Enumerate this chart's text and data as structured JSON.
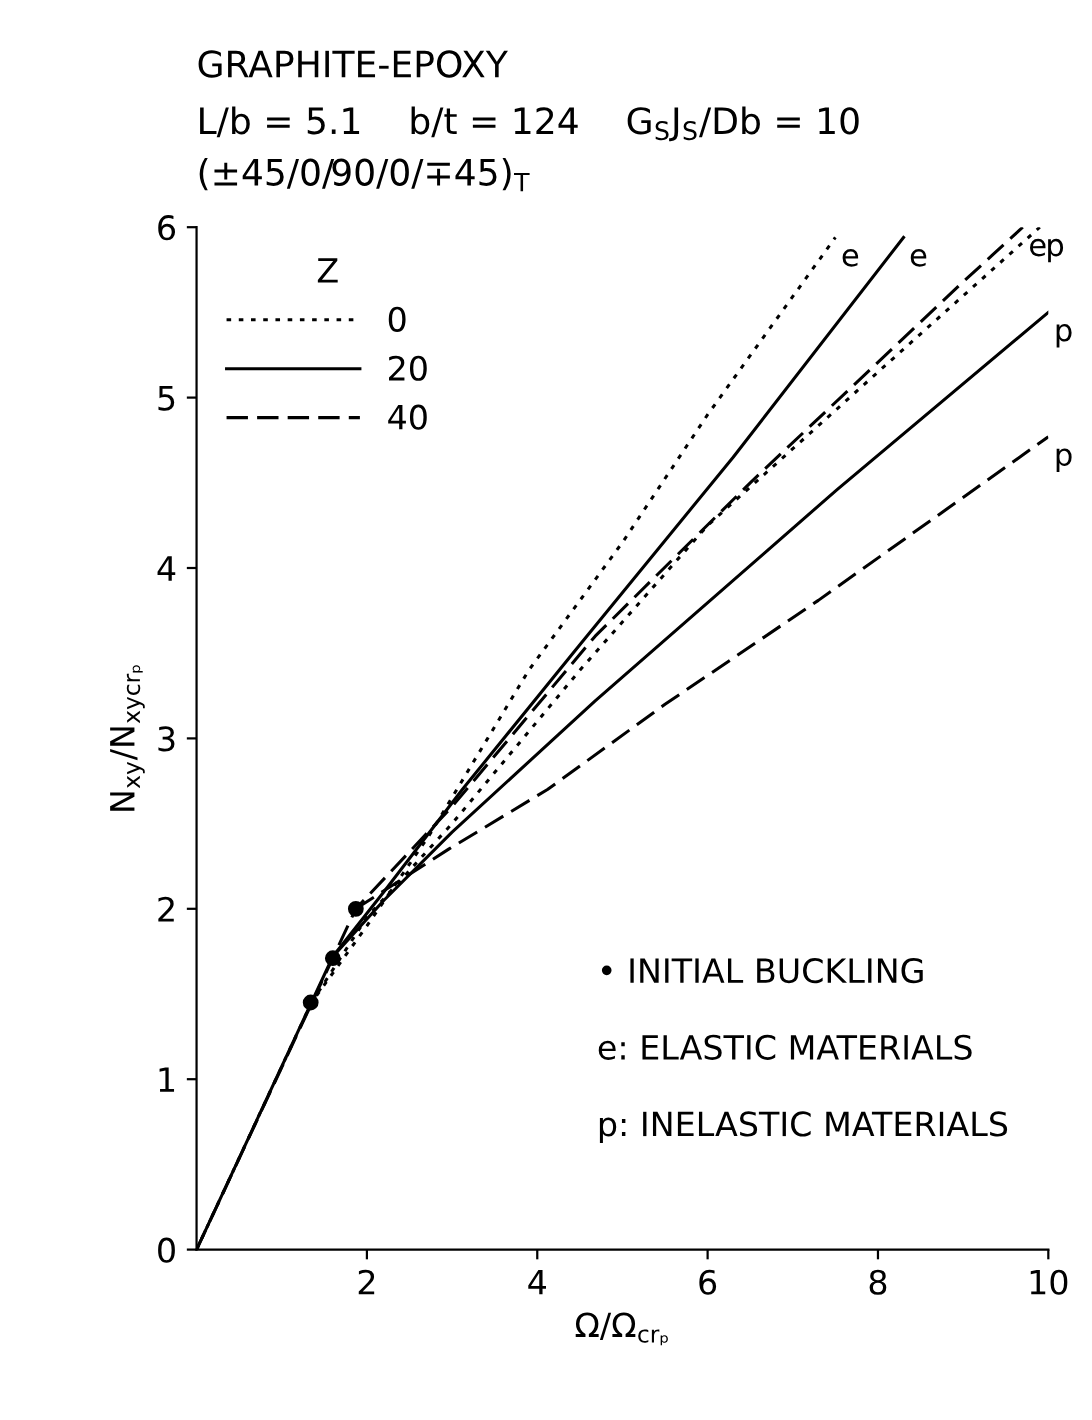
{
  "chart_data": {
    "type": "line",
    "title": "GRAPHITE-EPOXY",
    "subtitle": "L/b = 5.1    b/t = 124    G$_{S}$J$_{S}$/Db = 10\n(±45/0/90/0/∓45)$_{T}$",
    "xlabel": "Ω/Ω$_{crₚ}$",
    "ylabel": "N$_{xy}$/N$_{xycrₚ}$",
    "xlim": [
      0,
      10
    ],
    "ylim": [
      0,
      6
    ],
    "xticks": [
      2,
      4,
      6,
      8,
      10
    ],
    "yticks": [
      0,
      1,
      2,
      3,
      4,
      5,
      6
    ],
    "grid": false,
    "legend": "top left",
    "legend_title": "Z",
    "marker": "none",
    "series": [
      {
        "name": "0",
        "color": "#000000",
        "line_style": "dotted",
        "x": [
          0,
          1.35,
          2.0,
          2.73,
          3.9,
          5.0,
          6.0,
          7.5
        ],
        "values": [
          0,
          1.45,
          1.9,
          2.43,
          3.4,
          4.15,
          4.9,
          5.94
        ]
      },
      {
        "color": "#000000",
        "line_style": "dotted",
        "x": [
          1.35,
          2.0,
          3.0,
          4.5,
          6.0,
          8.0,
          9.9
        ],
        "values": [
          1.45,
          1.95,
          2.5,
          3.4,
          4.25,
          5.15,
          6.0
        ]
      },
      {
        "name": "20",
        "color": "#000000",
        "line_style": "solid",
        "x": [
          0,
          1.6,
          2.2,
          3.12,
          4.5,
          6.3,
          8.3
        ],
        "values": [
          0,
          1.72,
          2.1,
          2.7,
          3.55,
          4.65,
          5.94
        ]
      },
      {
        "color": "#000000",
        "line_style": "solid",
        "x": [
          1.6,
          2.2,
          3.0,
          4.68,
          7.52,
          10
        ],
        "values": [
          1.72,
          2.05,
          2.45,
          3.22,
          4.46,
          5.5
        ]
      },
      {
        "name": "40",
        "color": "#000000",
        "line_style": "dashed",
        "x": [
          0,
          1.87,
          3.0,
          4.68,
          6.5,
          8.98,
          9.7
        ],
        "values": [
          0,
          2.0,
          2.6,
          3.6,
          4.5,
          5.67,
          6.0
        ]
      },
      {
        "color": "#000000",
        "line_style": "dashed",
        "x": [
          1.87,
          2.96,
          4.12,
          5.5,
          7.3,
          10
        ],
        "values": [
          2.0,
          2.35,
          2.7,
          3.2,
          3.81,
          4.77
        ]
      },
      {
        "type": "scatter",
        "marker": "circle",
        "color": "#000000",
        "x": [
          1.34,
          1.6,
          1.87
        ],
        "values": [
          1.45,
          1.71,
          2.0
        ]
      }
    ],
    "annotations": [
      {
        "text": "e",
        "x": 7.5,
        "y": 5.94
      },
      {
        "text": "e",
        "x": 8.3,
        "y": 5.94
      },
      {
        "text": "e",
        "x": 9.7,
        "y": 6.0
      },
      {
        "text": "p",
        "x": 9.9,
        "y": 6.0
      },
      {
        "text": "p",
        "x": 10,
        "y": 5.5
      },
      {
        "text": "p",
        "x": 10,
        "y": 4.77
      },
      "• INITIAL BUCKLING",
      "e: ELASTIC MATERIALS",
      "p: INELASTIC MATERIALS"
    ]
  }
}
